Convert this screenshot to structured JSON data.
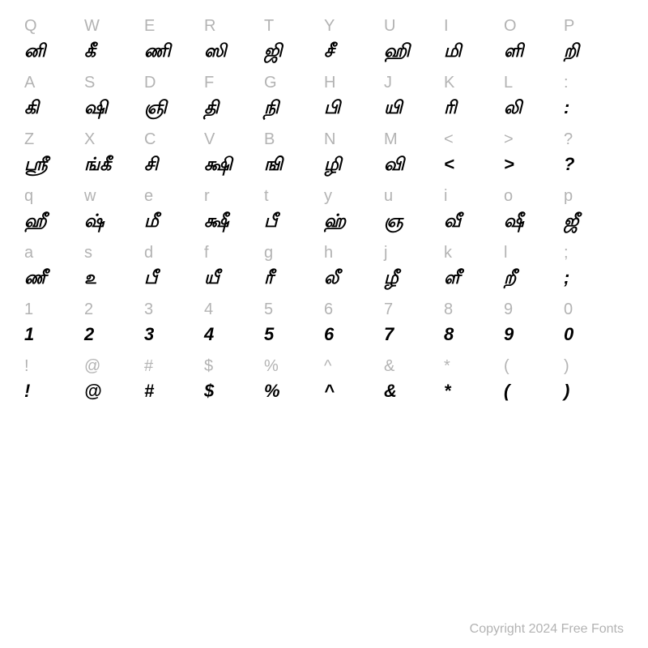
{
  "charmap": {
    "columns": 10,
    "label_color": "#b3b3b3",
    "glyph_color": "#000000",
    "label_fontsize": 20,
    "glyph_fontsize": 22,
    "background_color": "#ffffff",
    "rows": [
      {
        "keys": [
          "Q",
          "W",
          "E",
          "R",
          "T",
          "Y",
          "U",
          "I",
          "O",
          "P"
        ],
        "glyphs": [
          "னி",
          "கீ",
          "ணி",
          "ஸி",
          "ஜி",
          "சீ",
          "ஹி",
          "மி",
          "ளி",
          "றி"
        ]
      },
      {
        "keys": [
          "A",
          "S",
          "D",
          "F",
          "G",
          "H",
          "J",
          "K",
          "L",
          ":"
        ],
        "glyphs": [
          "கி",
          "ஷி",
          "ஞி",
          "தி",
          "நி",
          "பி",
          "யி",
          "ரி",
          "லி",
          ":"
        ]
      },
      {
        "keys": [
          "Z",
          "X",
          "C",
          "V",
          "B",
          "N",
          "M",
          "<",
          ">",
          "?"
        ],
        "glyphs": [
          "ஸ்ரீ",
          "ங்கீ",
          "சி",
          "க்ஷி",
          "ஙி",
          "ழி",
          "வி",
          "<",
          ">",
          "?"
        ]
      },
      {
        "keys": [
          "q",
          "w",
          "e",
          "r",
          "t",
          "y",
          "u",
          "i",
          "o",
          "p"
        ],
        "glyphs": [
          "ஹீ",
          "ஷ்",
          "மீ",
          "க்ஷீ",
          "பீ",
          "ஹ்",
          "ஞ",
          "வீ",
          "ஷீ",
          "ஜீ"
        ]
      },
      {
        "keys": [
          "a",
          "s",
          "d",
          "f",
          "g",
          "h",
          "j",
          "k",
          "l",
          ";"
        ],
        "glyphs": [
          "ணீ",
          "௨",
          "பீ",
          "யீ",
          "ரீ",
          "லீ",
          "ழீ",
          "ளீ",
          "றீ",
          ";"
        ]
      },
      {
        "keys": [
          "1",
          "2",
          "3",
          "4",
          "5",
          "6",
          "7",
          "8",
          "9",
          "0"
        ],
        "glyphs": [
          "1",
          "2",
          "3",
          "4",
          "5",
          "6",
          "7",
          "8",
          "9",
          "0"
        ]
      },
      {
        "keys": [
          "!",
          "@",
          "#",
          "$",
          "%",
          "^",
          "&",
          "*",
          "(",
          ")"
        ],
        "glyphs": [
          "!",
          "@",
          "#",
          "$",
          "%",
          "^",
          "&",
          "*",
          "(",
          ")"
        ]
      }
    ]
  },
  "footer": {
    "copyright": "Copyright 2024 Free Fonts"
  }
}
